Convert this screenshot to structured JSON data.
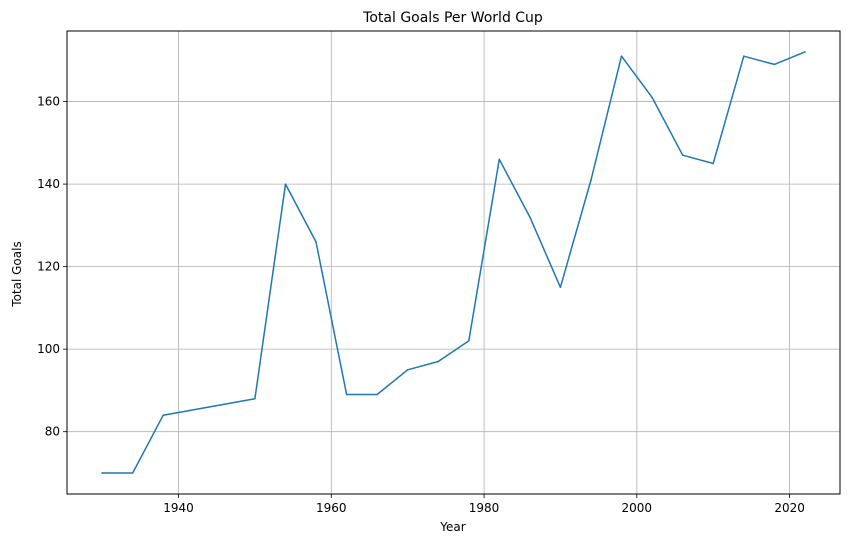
{
  "chart_data": {
    "type": "line",
    "title": "Total Goals Per World Cup",
    "xlabel": "Year",
    "ylabel": "Total Goals",
    "xlim": [
      1925.4,
      2026.6
    ],
    "ylim": [
      64.9,
      177.1
    ],
    "xticks": [
      1940,
      1960,
      1980,
      2000,
      2020
    ],
    "yticks": [
      80,
      100,
      120,
      140,
      160
    ],
    "grid": true,
    "legend": "none",
    "series": [
      {
        "color": "#1f77b4",
        "x": [
          1930,
          1934,
          1938,
          1950,
          1954,
          1958,
          1962,
          1966,
          1970,
          1974,
          1978,
          1982,
          1986,
          1990,
          1994,
          1998,
          2002,
          2006,
          2010,
          2014,
          2018,
          2022
        ],
        "y": [
          70,
          70,
          84,
          88,
          140,
          126,
          89,
          89,
          95,
          97,
          102,
          146,
          132,
          115,
          141,
          171,
          161,
          147,
          145,
          171,
          169,
          172
        ]
      }
    ]
  }
}
